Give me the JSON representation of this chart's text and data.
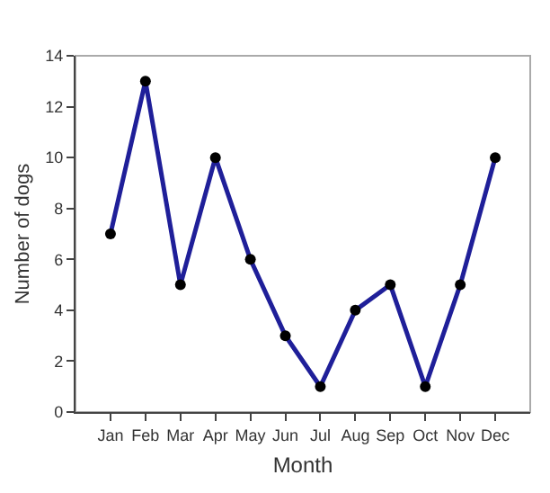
{
  "chart_data": {
    "type": "line",
    "xlabel": "Month",
    "ylabel": "Number of dogs",
    "categories": [
      "Jan",
      "Feb",
      "Mar",
      "Apr",
      "May",
      "Jun",
      "Jul",
      "Aug",
      "Sep",
      "Oct",
      "Nov",
      "Dec"
    ],
    "series": [
      {
        "color": "#1f1f99",
        "values": [
          7,
          13,
          5,
          10,
          6,
          3,
          1,
          4,
          5,
          1,
          5,
          10
        ]
      }
    ],
    "ylim": [
      0,
      14
    ],
    "yticks": [
      0,
      2,
      4,
      6,
      8,
      10,
      12,
      14
    ],
    "marker": "circle",
    "line_style": "solid",
    "grid": false
  }
}
